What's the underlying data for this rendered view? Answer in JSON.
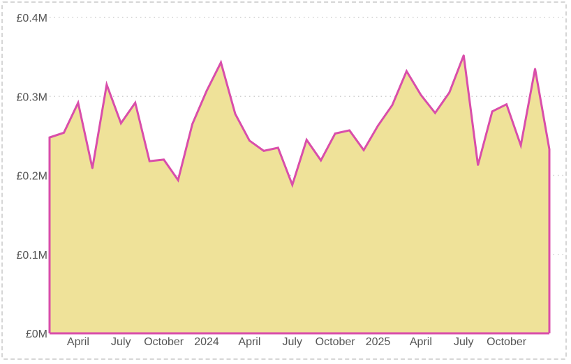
{
  "chart_data": {
    "type": "area",
    "title": "",
    "xlabel": "",
    "ylabel": "",
    "ylim": [
      0,
      0.4
    ],
    "y_ticks": [
      {
        "value": 0,
        "label": "£0M"
      },
      {
        "value": 0.1,
        "label": "£0.1M"
      },
      {
        "value": 0.2,
        "label": "£0.2M"
      },
      {
        "value": 0.3,
        "label": "£0.3M"
      },
      {
        "value": 0.4,
        "label": "£0.4M"
      }
    ],
    "x_ticks": [
      {
        "index": 2,
        "label": "April"
      },
      {
        "index": 5,
        "label": "July"
      },
      {
        "index": 8,
        "label": "October"
      },
      {
        "index": 11,
        "label": "2024"
      },
      {
        "index": 14,
        "label": "April"
      },
      {
        "index": 17,
        "label": "July"
      },
      {
        "index": 20,
        "label": "October"
      },
      {
        "index": 23,
        "label": "2025"
      },
      {
        "index": 26,
        "label": "April"
      },
      {
        "index": 29,
        "label": "July"
      },
      {
        "index": 32,
        "label": "October"
      }
    ],
    "x": [
      "2023-01",
      "2023-02",
      "2023-03",
      "2023-04",
      "2023-05",
      "2023-06",
      "2023-07",
      "2023-08",
      "2023-09",
      "2023-10",
      "2023-11",
      "2023-12",
      "2024-01",
      "2024-02",
      "2024-03",
      "2024-04",
      "2024-05",
      "2024-06",
      "2024-07",
      "2024-08",
      "2024-09",
      "2024-10",
      "2024-11",
      "2024-12",
      "2025-01",
      "2025-02",
      "2025-03",
      "2025-04",
      "2025-05",
      "2025-06",
      "2025-07",
      "2025-08",
      "2025-09",
      "2025-10",
      "2025-11",
      "2025-12"
    ],
    "series": [
      {
        "values": [
          0.248,
          0.254,
          0.292,
          0.209,
          0.315,
          0.266,
          0.292,
          0.218,
          0.22,
          0.194,
          0.265,
          0.307,
          0.343,
          0.278,
          0.244,
          0.231,
          0.235,
          0.188,
          0.245,
          0.219,
          0.253,
          0.257,
          0.232,
          0.263,
          0.289,
          0.332,
          0.302,
          0.279,
          0.305,
          0.352,
          0.213,
          0.281,
          0.29,
          0.238,
          0.335,
          0.233
        ]
      }
    ],
    "grid": true,
    "colors": {
      "line": "#d94eaa",
      "fill": "#efe299",
      "grid": "#cfcfcf",
      "tick_text": "#555555"
    }
  }
}
